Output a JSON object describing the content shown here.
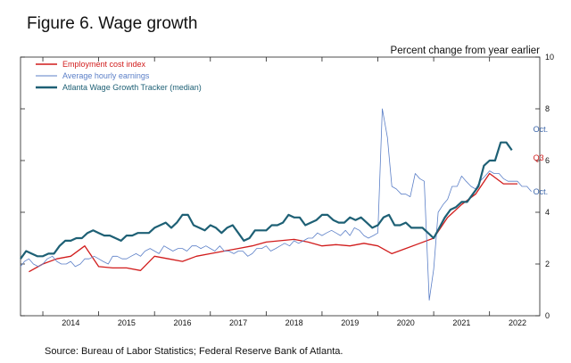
{
  "chart_data": {
    "type": "line",
    "title": "Figure 6. Wage growth",
    "ylabel": "Percent change from year earlier",
    "source": "Source: Bureau of Labor Statistics; Federal Reserve Bank of Atlanta.",
    "xlim": [
      2013.6,
      2022.9
    ],
    "ylim": [
      0,
      10
    ],
    "x_ticks": [
      "2014",
      "2015",
      "2016",
      "2017",
      "2018",
      "2019",
      "2020",
      "2021",
      "2022"
    ],
    "y_ticks": [
      "0",
      "2",
      "4",
      "6",
      "8",
      "10"
    ],
    "annotations": [
      {
        "text": "Oct.",
        "x": 2022.75,
        "y": 7.2,
        "series": "Average hourly earnings (atlanta)",
        "color": "#3a64a8"
      },
      {
        "text": "Q3",
        "x": 2022.75,
        "y": 6.1,
        "color": "#d11c1c"
      },
      {
        "text": "Oct.",
        "x": 2022.75,
        "y": 4.8,
        "color": "#3a64a8"
      }
    ],
    "series": [
      {
        "name": "Employment cost index",
        "color": "#d11c1c",
        "x": [
          2013.75,
          2014.0,
          2014.25,
          2014.5,
          2014.75,
          2015.0,
          2015.25,
          2015.5,
          2015.75,
          2016.0,
          2016.25,
          2016.5,
          2016.75,
          2017.0,
          2017.25,
          2017.5,
          2017.75,
          2018.0,
          2018.25,
          2018.5,
          2018.75,
          2019.0,
          2019.25,
          2019.5,
          2019.75,
          2020.0,
          2020.25,
          2020.5,
          2020.75,
          2021.0,
          2021.25,
          2021.5,
          2021.75,
          2022.0,
          2022.25,
          2022.5
        ],
        "values": [
          1.7,
          2.0,
          2.2,
          2.3,
          2.7,
          1.9,
          1.85,
          1.85,
          1.75,
          2.3,
          2.2,
          2.1,
          2.3,
          2.4,
          2.5,
          2.6,
          2.7,
          2.85,
          2.9,
          2.95,
          2.85,
          2.7,
          2.75,
          2.7,
          2.8,
          2.7,
          2.4,
          2.6,
          2.8,
          3.0,
          3.8,
          4.3,
          4.7,
          5.5,
          5.1,
          5.1
        ]
      },
      {
        "name": "Average hourly earnings",
        "color": "#5b7fc7",
        "x": [
          2013.6,
          2013.67,
          2013.75,
          2013.83,
          2013.92,
          2014.0,
          2014.08,
          2014.17,
          2014.25,
          2014.33,
          2014.42,
          2014.5,
          2014.58,
          2014.67,
          2014.75,
          2014.83,
          2014.92,
          2015.0,
          2015.08,
          2015.17,
          2015.25,
          2015.33,
          2015.42,
          2015.5,
          2015.58,
          2015.67,
          2015.75,
          2015.83,
          2015.92,
          2016.0,
          2016.08,
          2016.17,
          2016.25,
          2016.33,
          2016.42,
          2016.5,
          2016.58,
          2016.67,
          2016.75,
          2016.83,
          2016.92,
          2017.0,
          2017.08,
          2017.17,
          2017.25,
          2017.33,
          2017.42,
          2017.5,
          2017.58,
          2017.67,
          2017.75,
          2017.83,
          2017.92,
          2018.0,
          2018.08,
          2018.17,
          2018.25,
          2018.33,
          2018.42,
          2018.5,
          2018.58,
          2018.67,
          2018.75,
          2018.83,
          2018.92,
          2019.0,
          2019.08,
          2019.17,
          2019.25,
          2019.33,
          2019.42,
          2019.5,
          2019.58,
          2019.67,
          2019.75,
          2019.83,
          2019.92,
          2020.0,
          2020.08,
          2020.17,
          2020.25,
          2020.33,
          2020.42,
          2020.5,
          2020.58,
          2020.67,
          2020.75,
          2020.83,
          2020.92,
          2021.0,
          2021.08,
          2021.17,
          2021.25,
          2021.33,
          2021.42,
          2021.5,
          2021.58,
          2021.67,
          2021.75,
          2021.83,
          2021.92,
          2022.0,
          2022.08,
          2022.17,
          2022.25,
          2022.33,
          2022.42,
          2022.5,
          2022.58,
          2022.67,
          2022.75
        ],
        "values": [
          1.9,
          2.1,
          2.2,
          2.0,
          1.9,
          2.0,
          2.2,
          2.3,
          2.1,
          2.0,
          2.0,
          2.1,
          1.9,
          2.0,
          2.2,
          2.2,
          2.3,
          2.2,
          2.1,
          2.0,
          2.3,
          2.3,
          2.2,
          2.2,
          2.3,
          2.4,
          2.3,
          2.5,
          2.6,
          2.5,
          2.4,
          2.7,
          2.6,
          2.5,
          2.6,
          2.6,
          2.5,
          2.7,
          2.7,
          2.6,
          2.7,
          2.6,
          2.5,
          2.7,
          2.5,
          2.5,
          2.4,
          2.5,
          2.5,
          2.3,
          2.4,
          2.6,
          2.6,
          2.7,
          2.5,
          2.6,
          2.7,
          2.8,
          2.7,
          2.9,
          2.8,
          2.9,
          3.0,
          3.0,
          3.2,
          3.1,
          3.2,
          3.3,
          3.2,
          3.1,
          3.3,
          3.1,
          3.4,
          3.3,
          3.1,
          3.0,
          3.1,
          3.2,
          8.0,
          6.9,
          5.0,
          4.9,
          4.7,
          4.7,
          4.6,
          5.5,
          5.3,
          5.2,
          0.6,
          1.8,
          4.0,
          4.3,
          4.5,
          5.0,
          5.0,
          5.4,
          5.2,
          5.0,
          4.9,
          5.2,
          5.4,
          5.6,
          5.5,
          5.5,
          5.3,
          5.2,
          5.2,
          5.2,
          5.0,
          5.0,
          4.8
        ]
      },
      {
        "name": "Atlanta Wage Growth Tracker (median)",
        "color": "#1e6075",
        "x": [
          2013.6,
          2013.7,
          2013.8,
          2013.9,
          2014.0,
          2014.1,
          2014.2,
          2014.3,
          2014.4,
          2014.5,
          2014.6,
          2014.7,
          2014.8,
          2014.9,
          2015.0,
          2015.1,
          2015.2,
          2015.3,
          2015.4,
          2015.5,
          2015.6,
          2015.7,
          2015.8,
          2015.9,
          2016.0,
          2016.1,
          2016.2,
          2016.3,
          2016.4,
          2016.5,
          2016.6,
          2016.7,
          2016.8,
          2016.9,
          2017.0,
          2017.1,
          2017.2,
          2017.3,
          2017.4,
          2017.5,
          2017.6,
          2017.7,
          2017.8,
          2017.9,
          2018.0,
          2018.1,
          2018.2,
          2018.3,
          2018.4,
          2018.5,
          2018.6,
          2018.7,
          2018.8,
          2018.9,
          2019.0,
          2019.1,
          2019.2,
          2019.3,
          2019.4,
          2019.5,
          2019.6,
          2019.7,
          2019.8,
          2019.9,
          2020.0,
          2020.1,
          2020.2,
          2020.3,
          2020.4,
          2020.5,
          2020.6,
          2020.7,
          2020.8,
          2020.9,
          2021.0,
          2021.1,
          2021.2,
          2021.3,
          2021.4,
          2021.5,
          2021.6,
          2021.7,
          2021.8,
          2021.9,
          2022.0,
          2022.1,
          2022.2,
          2022.3,
          2022.4
        ],
        "values": [
          2.2,
          2.5,
          2.4,
          2.3,
          2.3,
          2.4,
          2.4,
          2.7,
          2.9,
          2.9,
          3.0,
          3.0,
          3.2,
          3.3,
          3.2,
          3.1,
          3.1,
          3.0,
          2.9,
          3.1,
          3.1,
          3.2,
          3.2,
          3.2,
          3.4,
          3.5,
          3.6,
          3.4,
          3.6,
          3.9,
          3.9,
          3.5,
          3.4,
          3.3,
          3.5,
          3.4,
          3.2,
          3.4,
          3.5,
          3.2,
          2.9,
          3.0,
          3.3,
          3.3,
          3.3,
          3.5,
          3.5,
          3.6,
          3.9,
          3.8,
          3.8,
          3.5,
          3.6,
          3.7,
          3.9,
          3.9,
          3.7,
          3.6,
          3.6,
          3.8,
          3.7,
          3.8,
          3.6,
          3.4,
          3.5,
          3.8,
          3.9,
          3.5,
          3.5,
          3.6,
          3.4,
          3.4,
          3.4,
          3.2,
          3.0,
          3.4,
          3.8,
          4.1,
          4.2,
          4.4,
          4.4,
          4.7,
          5.0,
          5.8,
          6.0,
          6.0,
          6.7,
          6.7,
          6.4
        ]
      }
    ]
  }
}
